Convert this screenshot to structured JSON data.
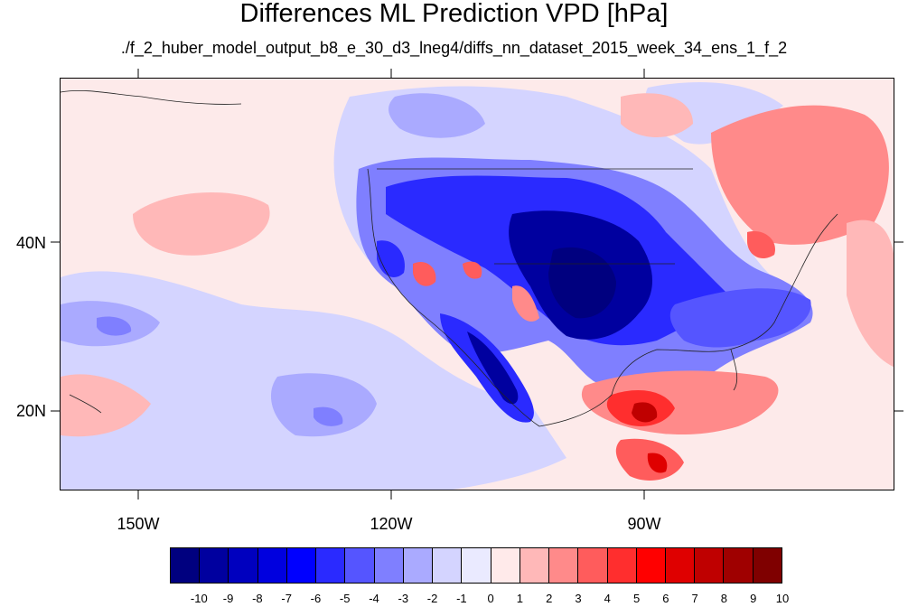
{
  "title": "Differences ML Prediction VPD [hPa]",
  "subtitle": "./f_2_huber_model_output_b8_e_30_d3_lneg4/diffs_nn_dataset_2015_week_34_ens_1_f_2",
  "lat_labels": [
    "40N",
    "20N"
  ],
  "lon_labels": [
    "150W",
    "120W",
    "90W"
  ],
  "colorbar": {
    "labels": [
      "-10",
      "-9",
      "-8",
      "-7",
      "-6",
      "-5",
      "-4",
      "-3",
      "-2",
      "-1",
      "0",
      "1",
      "2",
      "3",
      "4",
      "5",
      "6",
      "7",
      "8",
      "9",
      "10"
    ],
    "colors": [
      "#00007f",
      "#00009f",
      "#0000bf",
      "#0000df",
      "#0000ff",
      "#2a2aff",
      "#5555ff",
      "#7f7fff",
      "#aaaaff",
      "#d4d4ff",
      "#eaeaff",
      "#ffeaea",
      "#ffb8b8",
      "#ff8a8a",
      "#ff5c5c",
      "#ff2e2e",
      "#ff0000",
      "#df0000",
      "#bf0000",
      "#9f0000",
      "#7f0000"
    ]
  },
  "colors": {
    "background": "#fdeaea",
    "strong_negative": "#00009f",
    "negative": "#5555ff",
    "weak_negative": "#aaaaff",
    "neutral": "#eaeaff",
    "weak_positive": "#ffb8b8",
    "positive": "#ff5c5c",
    "strong_positive": "#bf0000"
  }
}
